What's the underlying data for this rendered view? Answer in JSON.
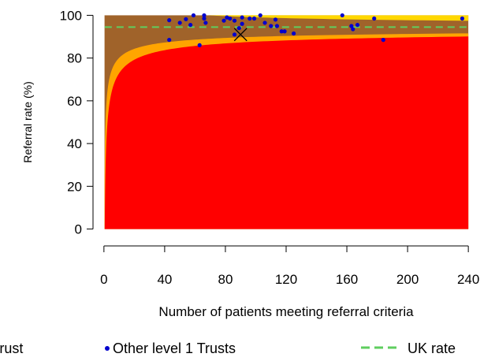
{
  "chart_data": {
    "type": "scatter",
    "title": "",
    "xlabel": "Number of patients meeting referral criteria",
    "ylabel": "Referral rate (%)",
    "xlim": [
      -2,
      242
    ],
    "ylim": [
      -2,
      102
    ],
    "xticks": [
      0,
      40,
      80,
      120,
      160,
      200,
      240
    ],
    "yticks": [
      0,
      20,
      40,
      60,
      80,
      100
    ],
    "grid": false,
    "uk_rate": 94.5,
    "colors": {
      "funnel_outer": "#ffd700",
      "funnel_middle": "#ffa500",
      "funnel_inner": "#ff0000",
      "region_above": "#a0632a",
      "points": "#0000cd",
      "uk_line": "#5fce5f",
      "trust_marker": "#000000"
    },
    "legend": {
      "placement": "bottom",
      "entries": [
        {
          "label": "Trust",
          "marker": "cross"
        },
        {
          "label": "Other level 1 Trusts",
          "marker": "dot"
        },
        {
          "label": "UK rate",
          "marker": "dashed-line"
        }
      ]
    },
    "trust": {
      "x": 90,
      "y": 91
    },
    "series": [
      {
        "name": "Other level 1 Trusts",
        "points": [
          {
            "x": 43,
            "y": 97.7
          },
          {
            "x": 43,
            "y": 88.5
          },
          {
            "x": 50,
            "y": 96.5
          },
          {
            "x": 54,
            "y": 98.2
          },
          {
            "x": 57,
            "y": 95.5
          },
          {
            "x": 59,
            "y": 100
          },
          {
            "x": 63,
            "y": 86
          },
          {
            "x": 66,
            "y": 100
          },
          {
            "x": 66,
            "y": 98.5
          },
          {
            "x": 67,
            "y": 96.5
          },
          {
            "x": 79,
            "y": 97.5
          },
          {
            "x": 81,
            "y": 99
          },
          {
            "x": 83,
            "y": 98.5
          },
          {
            "x": 86,
            "y": 97.5
          },
          {
            "x": 86,
            "y": 91
          },
          {
            "x": 89,
            "y": 94
          },
          {
            "x": 91,
            "y": 99
          },
          {
            "x": 91,
            "y": 96
          },
          {
            "x": 96,
            "y": 98.5
          },
          {
            "x": 99,
            "y": 98.5
          },
          {
            "x": 103,
            "y": 100
          },
          {
            "x": 106,
            "y": 96.5
          },
          {
            "x": 110,
            "y": 95
          },
          {
            "x": 113,
            "y": 98
          },
          {
            "x": 114,
            "y": 95
          },
          {
            "x": 117,
            "y": 92.5
          },
          {
            "x": 119,
            "y": 92.5
          },
          {
            "x": 125,
            "y": 91.5
          },
          {
            "x": 157,
            "y": 100
          },
          {
            "x": 163,
            "y": 95
          },
          {
            "x": 164,
            "y": 93.5
          },
          {
            "x": 167,
            "y": 95.5
          },
          {
            "x": 178,
            "y": 98.5
          },
          {
            "x": 184,
            "y": 88.5
          },
          {
            "x": 236,
            "y": 98.5
          }
        ]
      }
    ]
  }
}
